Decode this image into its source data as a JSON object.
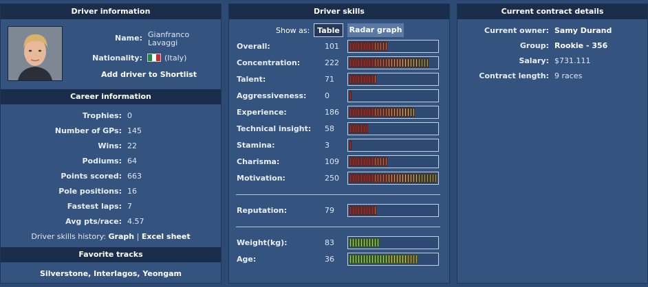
{
  "driver_info": {
    "title": "Driver information",
    "name_label": "Name:",
    "first_name": "Gianfranco",
    "last_name": "Lavaggi",
    "nationality_label": "Nationality:",
    "nationality": "(Italy)",
    "shortlist_link": "Add driver to Shortlist",
    "flag_colors": [
      "#1f8b3a",
      "#ffffff",
      "#d22b2b"
    ]
  },
  "career": {
    "title": "Career information",
    "rows": [
      {
        "label": "Trophies:",
        "value": "0"
      },
      {
        "label": "Number of GPs:",
        "value": "145"
      },
      {
        "label": "Wins:",
        "value": "22"
      },
      {
        "label": "Podiums:",
        "value": "64"
      },
      {
        "label": "Points scored:",
        "value": "663"
      },
      {
        "label": "Pole positions:",
        "value": "16"
      },
      {
        "label": "Fastest laps:",
        "value": "7"
      },
      {
        "label": "Avg pts/race:",
        "value": "4.57"
      }
    ],
    "history_label": "Driver skills history:",
    "history_graph": "Graph",
    "history_sep": "|",
    "history_excel": "Excel sheet"
  },
  "tracks": {
    "title": "Favorite tracks",
    "list": "Silverstone, Interlagos, Yeongam"
  },
  "skills": {
    "title": "Driver skills",
    "show_as_label": "Show as:",
    "tab_table": "Table",
    "tab_radar": "Radar graph",
    "rows": [
      {
        "label": "Overall:",
        "value": "101",
        "segments": 14
      },
      {
        "label": "Concentration:",
        "value": "222",
        "segments": 29
      },
      {
        "label": "Talent:",
        "value": "71",
        "segments": 10
      },
      {
        "label": "Aggressiveness:",
        "value": "0",
        "segments": 1
      },
      {
        "label": "Experience:",
        "value": "186",
        "segments": 24
      },
      {
        "label": "Technical insight:",
        "value": "58",
        "segments": 7
      },
      {
        "label": "Stamina:",
        "value": "3",
        "segments": 1
      },
      {
        "label": "Charisma:",
        "value": "109",
        "segments": 14
      },
      {
        "label": "Motivation:",
        "value": "250",
        "segments": 32
      }
    ],
    "reputation": {
      "label": "Reputation:",
      "value": "79",
      "segments": 10
    },
    "physical": [
      {
        "label": "Weight(kg):",
        "value": "83",
        "segments": 11
      },
      {
        "label": "Age:",
        "value": "36",
        "segments": 25
      }
    ],
    "segment_max": 32,
    "physical_colors": [
      "#a7e23a",
      "#f0c81e",
      "#f08c1e"
    ]
  },
  "contract": {
    "title": "Current contract details",
    "rows": [
      {
        "label": "Current owner:",
        "value": "Samy Durand",
        "bold": true
      },
      {
        "label": "Group:",
        "value": "Rookie - 356",
        "bold": true
      },
      {
        "label": "Salary:",
        "value": "$731.111",
        "bold": false
      },
      {
        "label": "Contract length:",
        "value": "9 races",
        "bold": false
      }
    ]
  }
}
